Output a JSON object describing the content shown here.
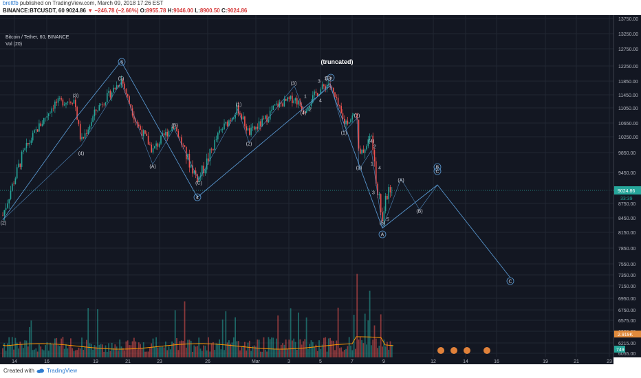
{
  "header": {
    "user": "brettfb",
    "published": "published on TradingView.com, March 09, 2018 17:26 EST",
    "symbol": "BINANCE:BTCUSDT, 60",
    "last": "9024.86",
    "change": "▼ −246.78 (−2.66%)",
    "o_label": "O:",
    "o": "8955.78",
    "h_label": "H:",
    "h": "9046.00",
    "l_label": "L:",
    "l": "8900.50",
    "c_label": "C:",
    "c": "9024.86"
  },
  "legend": {
    "title": "Bitcoin / Tether, 60, BINANCE",
    "vol": "Vol (20)"
  },
  "footer": {
    "created": "Created with",
    "brand": "TradingView"
  },
  "colors": {
    "background": "#131722",
    "up": "#26a69a",
    "down": "#ef5350",
    "wave": "#5b9bd5",
    "grid": "#222733",
    "price_line": "#26a69a",
    "vol_ma": "#ff9800"
  },
  "chart_data": {
    "type": "candlestick",
    "title": "Bitcoin / Tether, 60, BINANCE",
    "ylim": [
      5900,
      13900
    ],
    "y_ticks": [
      "13750.00",
      "13250.00",
      "12750.00",
      "12250.00",
      "11850.00",
      "11450.00",
      "11050.00",
      "10650.00",
      "10250.00",
      "9850.00",
      "9450.00",
      "9024.86",
      "8750.00",
      "8450.00",
      "8150.00",
      "7850.00",
      "7550.00",
      "7350.00",
      "7150.00",
      "6950.00",
      "6750.00",
      "6575.00",
      "6395.00",
      "6215.00",
      "6055.00"
    ],
    "x_ticks": [
      "14",
      "16",
      "19",
      "21",
      "23",
      "26",
      "Mar",
      "3",
      "5",
      "7",
      "9",
      "12",
      "14",
      "16",
      "19",
      "21",
      "23"
    ],
    "last_price": 9024.86,
    "last_price_label": "9024.86",
    "countdown_label": "33:39",
    "volume_label": "2.919K",
    "volume_label2": "749",
    "annotation": "(truncated)",
    "wave_path": [
      {
        "date": "Feb 13",
        "value": 8500
      },
      {
        "date": "Feb 20",
        "value": 12250
      },
      {
        "date": "Feb 25",
        "value": 8900
      },
      {
        "date": "Mar 5",
        "value": 11850
      },
      {
        "date": "Mar 9",
        "value": 8100
      },
      {
        "date": "Mar 12",
        "value": 9500
      },
      {
        "date": "Mar 16",
        "value": 7200
      }
    ],
    "wave_labels": [
      {
        "text": "3",
        "circled": true
      },
      {
        "text": "4",
        "circled": true
      },
      {
        "text": "5",
        "circled": true
      },
      {
        "text": "A",
        "circled": true
      },
      {
        "text": "B",
        "circled": true
      },
      {
        "text": "C",
        "circled": true
      },
      {
        "text": "C",
        "circled": true
      },
      {
        "text": "(3)"
      },
      {
        "text": "(4)"
      },
      {
        "text": "(5)"
      },
      {
        "text": "(A)"
      },
      {
        "text": "(B)"
      },
      {
        "text": "(C)"
      },
      {
        "text": "(1)"
      },
      {
        "text": "(2)"
      },
      {
        "text": "(3)"
      },
      {
        "text": "(4)"
      },
      {
        "text": "(5)"
      },
      {
        "text": "(1)"
      },
      {
        "text": "(2)"
      },
      {
        "text": "(3)"
      },
      {
        "text": "(4)"
      },
      {
        "text": "(5)"
      },
      {
        "text": "(A)"
      },
      {
        "text": "(B)"
      },
      {
        "text": "1"
      },
      {
        "text": "2"
      },
      {
        "text": "3"
      },
      {
        "text": "4"
      },
      {
        "text": "5"
      },
      {
        "text": "1"
      },
      {
        "text": "2"
      },
      {
        "text": "3"
      },
      {
        "text": "4"
      },
      {
        "text": "5"
      },
      {
        "text": "(2)"
      }
    ]
  }
}
